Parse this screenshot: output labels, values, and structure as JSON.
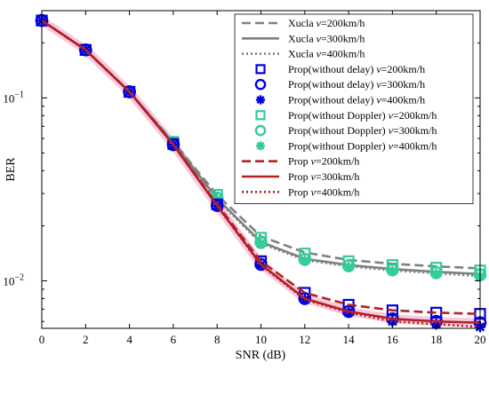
{
  "chart_data": {
    "type": "line",
    "title": "",
    "xlabel": "SNR (dB)",
    "ylabel": "BER",
    "yscale": "log",
    "xlim": [
      0,
      20
    ],
    "ylim": [
      0.0055,
      0.3
    ],
    "grid": false,
    "legend_placement": "top-right",
    "x": [
      0,
      2,
      4,
      6,
      8,
      10,
      12,
      14,
      16,
      18,
      20
    ],
    "x_ticks": [
      "0",
      "2",
      "4",
      "6",
      "8",
      "10",
      "12",
      "14",
      "16",
      "18",
      "20"
    ],
    "y_ticks": [
      {
        "value": 0.1,
        "base": "10",
        "exp": "−1"
      },
      {
        "value": 0.01,
        "base": "10",
        "exp": "−2"
      }
    ],
    "series": [
      {
        "name_prefix": "Xucla ",
        "name_var": "v",
        "name_suffix": "=200km/h",
        "kind": "line",
        "color": "#808080",
        "dash": "10,5",
        "width": 2.6,
        "values": [
          0.265,
          0.183,
          0.108,
          0.0575,
          0.0295,
          0.0175,
          0.0143,
          0.013,
          0.0124,
          0.012,
          0.0117
        ]
      },
      {
        "name_prefix": "Xucla ",
        "name_var": "v",
        "name_suffix": "=300km/h",
        "kind": "line",
        "color": "#808080",
        "dash": "",
        "width": 2.6,
        "values": [
          0.265,
          0.183,
          0.108,
          0.057,
          0.0282,
          0.0163,
          0.0132,
          0.0122,
          0.0116,
          0.0112,
          0.0109
        ]
      },
      {
        "name_prefix": "Xucla ",
        "name_var": "v",
        "name_suffix": "=400km/h",
        "kind": "line",
        "color": "#808080",
        "dash": "2,3",
        "width": 2.6,
        "values": [
          0.265,
          0.183,
          0.108,
          0.057,
          0.0278,
          0.016,
          0.013,
          0.012,
          0.0114,
          0.011,
          0.0106
        ]
      },
      {
        "name_prefix": "Prop(without delay) ",
        "name_var": "v",
        "name_suffix": "=200km/h",
        "kind": "marker",
        "marker": "square",
        "color": "#0000dd",
        "values": [
          0.265,
          0.183,
          0.108,
          0.056,
          0.0262,
          0.0128,
          0.0086,
          0.0074,
          0.0069,
          0.0067,
          0.0066
        ]
      },
      {
        "name_prefix": "Prop(without delay) ",
        "name_var": "v",
        "name_suffix": "=300km/h",
        "kind": "marker",
        "marker": "circle",
        "color": "#0000dd",
        "values": [
          0.265,
          0.183,
          0.108,
          0.0555,
          0.0258,
          0.0123,
          0.008,
          0.0068,
          0.0062,
          0.006,
          0.0059
        ]
      },
      {
        "name_prefix": "Prop(without delay) ",
        "name_var": "v",
        "name_suffix": "=400km/h",
        "kind": "marker",
        "marker": "asterisk",
        "color": "#0000dd",
        "values": [
          0.265,
          0.183,
          0.108,
          0.0555,
          0.0257,
          0.0122,
          0.0079,
          0.0067,
          0.006,
          0.0058,
          0.0056
        ]
      },
      {
        "name_prefix": "Prop(without Doppler) ",
        "name_var": "v",
        "name_suffix": "=200km/h",
        "kind": "marker",
        "marker": "square",
        "color": "#33cc99",
        "values": [
          0.265,
          0.183,
          0.108,
          0.0575,
          0.0295,
          0.0172,
          0.0141,
          0.0128,
          0.0122,
          0.0118,
          0.0114
        ]
      },
      {
        "name_prefix": "Prop(without Doppler) ",
        "name_var": "v",
        "name_suffix": "=300km/h",
        "kind": "marker",
        "marker": "circle",
        "color": "#33cc99",
        "values": [
          0.265,
          0.183,
          0.108,
          0.057,
          0.0283,
          0.0162,
          0.0131,
          0.0121,
          0.0115,
          0.0111,
          0.0108
        ]
      },
      {
        "name_prefix": "Prop(without Doppler) ",
        "name_var": "v",
        "name_suffix": "=400km/h",
        "kind": "marker",
        "marker": "asterisk",
        "color": "#33cc99",
        "values": [
          0.265,
          0.183,
          0.108,
          0.057,
          0.028,
          0.016,
          0.0129,
          0.0119,
          0.0113,
          0.0109,
          0.0106
        ]
      },
      {
        "name_prefix": "Prop ",
        "name_var": "v",
        "name_suffix": "=200km/h",
        "kind": "line",
        "color": "#b22222",
        "dash": "10,5",
        "width": 2.6,
        "values": [
          0.265,
          0.183,
          0.108,
          0.056,
          0.0262,
          0.0128,
          0.0086,
          0.0074,
          0.0069,
          0.0067,
          0.0066
        ]
      },
      {
        "name_prefix": "Prop ",
        "name_var": "v",
        "name_suffix": "=300km/h",
        "kind": "line",
        "color": "#b22222",
        "dash": "",
        "width": 2.6,
        "values": [
          0.265,
          0.183,
          0.108,
          0.0555,
          0.0258,
          0.0123,
          0.008,
          0.0068,
          0.0062,
          0.006,
          0.0059
        ]
      },
      {
        "name_prefix": "Prop ",
        "name_var": "v",
        "name_suffix": "=400km/h",
        "kind": "line",
        "color": "#b22222",
        "dash": "2,3",
        "width": 2.6,
        "values": [
          0.265,
          0.183,
          0.108,
          0.0555,
          0.0257,
          0.0122,
          0.0079,
          0.0067,
          0.006,
          0.0058,
          0.0056
        ]
      }
    ]
  }
}
